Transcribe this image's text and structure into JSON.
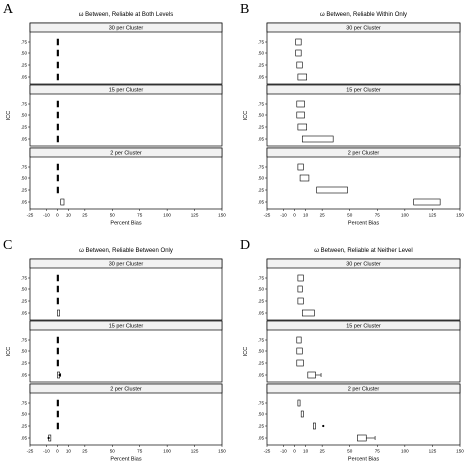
{
  "chart_data": [
    {
      "type": "boxplot",
      "letter": "A",
      "title": "ω Between, Reliable at Both Levels",
      "xlabel": "Percent Bias",
      "ylabel": "ICC",
      "xlim": [
        -25,
        150
      ],
      "xticks": [
        -25,
        -10,
        0,
        10,
        25,
        50,
        75,
        100,
        125,
        150
      ],
      "icc_levels": [
        ".75",
        ".50",
        ".25",
        ".05"
      ],
      "facets": [
        {
          "label": "30 per Cluster",
          "boxes": [
            {
              "icc": ".75",
              "q1": 0,
              "q3": 1,
              "wlo": 0,
              "whi": 1
            },
            {
              "icc": ".50",
              "q1": 0,
              "q3": 1,
              "wlo": 0,
              "whi": 1
            },
            {
              "icc": ".25",
              "q1": 0,
              "q3": 1,
              "wlo": 0,
              "whi": 1
            },
            {
              "icc": ".05",
              "q1": 0,
              "q3": 1,
              "wlo": 0,
              "whi": 1
            }
          ]
        },
        {
          "label": "15 per Cluster",
          "boxes": [
            {
              "icc": ".75",
              "q1": 0,
              "q3": 1,
              "wlo": 0,
              "whi": 1
            },
            {
              "icc": ".50",
              "q1": 0,
              "q3": 1,
              "wlo": 0,
              "whi": 1
            },
            {
              "icc": ".25",
              "q1": 0,
              "q3": 1,
              "wlo": 0,
              "whi": 1
            },
            {
              "icc": ".05",
              "q1": 0,
              "q3": 1,
              "wlo": 0,
              "whi": 1
            }
          ]
        },
        {
          "label": "2 per Cluster",
          "boxes": [
            {
              "icc": ".75",
              "q1": 0,
              "q3": 1,
              "wlo": 0,
              "whi": 1
            },
            {
              "icc": ".50",
              "q1": 0,
              "q3": 1,
              "wlo": 0,
              "whi": 1
            },
            {
              "icc": ".25",
              "q1": 0,
              "q3": 1,
              "wlo": 0,
              "whi": 1
            },
            {
              "icc": ".05",
              "q1": 3,
              "q3": 6,
              "wlo": 3,
              "whi": 6
            }
          ]
        }
      ]
    },
    {
      "type": "boxplot",
      "letter": "B",
      "title": "ω Between, Reliable Within Only",
      "xlabel": "Percent Bias",
      "ylabel": "ICC",
      "xlim": [
        -25,
        150
      ],
      "xticks": [
        -25,
        -10,
        0,
        10,
        25,
        50,
        75,
        100,
        125,
        150
      ],
      "icc_levels": [
        ".75",
        ".50",
        ".25",
        ".05"
      ],
      "facets": [
        {
          "label": "30 per Cluster",
          "boxes": [
            {
              "icc": ".75",
              "q1": 1,
              "q3": 6,
              "wlo": 1,
              "whi": 6
            },
            {
              "icc": ".50",
              "q1": 1,
              "q3": 6,
              "wlo": 1,
              "whi": 6
            },
            {
              "icc": ".25",
              "q1": 2,
              "q3": 7,
              "wlo": 2,
              "whi": 7
            },
            {
              "icc": ".05",
              "q1": 3,
              "q3": 11,
              "wlo": 3,
              "whi": 11
            }
          ]
        },
        {
          "label": "15 per Cluster",
          "boxes": [
            {
              "icc": ".75",
              "q1": 2,
              "q3": 9,
              "wlo": 2,
              "whi": 9
            },
            {
              "icc": ".50",
              "q1": 2,
              "q3": 9,
              "wlo": 2,
              "whi": 9
            },
            {
              "icc": ".25",
              "q1": 3,
              "q3": 11,
              "wlo": 3,
              "whi": 11
            },
            {
              "icc": ".05",
              "q1": 7,
              "q3": 35,
              "wlo": 7,
              "whi": 35
            }
          ]
        },
        {
          "label": "2 per Cluster",
          "boxes": [
            {
              "icc": ".75",
              "q1": 3,
              "q3": 8,
              "wlo": 3,
              "whi": 8
            },
            {
              "icc": ".50",
              "q1": 5,
              "q3": 13,
              "wlo": 5,
              "whi": 13
            },
            {
              "icc": ".25",
              "q1": 20,
              "q3": 48,
              "wlo": 20,
              "whi": 48
            },
            {
              "icc": ".05",
              "q1": 108,
              "q3": 132,
              "wlo": 108,
              "whi": 132
            }
          ]
        }
      ]
    },
    {
      "type": "boxplot",
      "letter": "C",
      "title": "ω Between, Reliable Between Only",
      "xlabel": "Percent Bias",
      "ylabel": "ICC",
      "xlim": [
        -25,
        150
      ],
      "xticks": [
        -25,
        -10,
        0,
        10,
        25,
        50,
        75,
        100,
        125,
        150
      ],
      "icc_levels": [
        ".75",
        ".50",
        ".25",
        ".05"
      ],
      "facets": [
        {
          "label": "30 per Cluster",
          "boxes": [
            {
              "icc": ".75",
              "q1": 0,
              "q3": 1,
              "wlo": 0,
              "whi": 1
            },
            {
              "icc": ".50",
              "q1": 0,
              "q3": 1,
              "wlo": 0,
              "whi": 1
            },
            {
              "icc": ".25",
              "q1": 0,
              "q3": 1,
              "wlo": 0,
              "whi": 1
            },
            {
              "icc": ".05",
              "q1": 0,
              "q3": 2,
              "wlo": 0,
              "whi": 2
            }
          ]
        },
        {
          "label": "15 per Cluster",
          "boxes": [
            {
              "icc": ".75",
              "q1": 0,
              "q3": 1,
              "wlo": 0,
              "whi": 1
            },
            {
              "icc": ".50",
              "q1": 0,
              "q3": 1,
              "wlo": 0,
              "whi": 1
            },
            {
              "icc": ".25",
              "q1": 0,
              "q3": 1,
              "wlo": 0,
              "whi": 1
            },
            {
              "icc": ".05",
              "q1": 0,
              "q3": 2,
              "wlo": 0,
              "whi": 3,
              "outliers": [
                2
              ]
            }
          ]
        },
        {
          "label": "2 per Cluster",
          "boxes": [
            {
              "icc": ".75",
              "q1": 0,
              "q3": 1,
              "wlo": 0,
              "whi": 1
            },
            {
              "icc": ".50",
              "q1": 0,
              "q3": 1,
              "wlo": 0,
              "whi": 1
            },
            {
              "icc": ".25",
              "q1": 0,
              "q3": 1,
              "wlo": 0,
              "whi": 1
            },
            {
              "icc": ".05",
              "q1": -8,
              "q3": -6,
              "wlo": -9,
              "whi": -6,
              "outliers": [
                -8
              ]
            }
          ]
        }
      ]
    },
    {
      "type": "boxplot",
      "letter": "D",
      "title": "ω Between, Reliable at Neither Level",
      "xlabel": "Percent Bias",
      "ylabel": "ICC",
      "xlim": [
        -25,
        150
      ],
      "xticks": [
        -25,
        -10,
        0,
        10,
        25,
        50,
        75,
        100,
        125,
        150
      ],
      "icc_levels": [
        ".75",
        ".50",
        ".25",
        ".05"
      ],
      "facets": [
        {
          "label": "30 per Cluster",
          "boxes": [
            {
              "icc": ".75",
              "q1": 3,
              "q3": 8,
              "wlo": 3,
              "whi": 8
            },
            {
              "icc": ".50",
              "q1": 3,
              "q3": 7,
              "wlo": 3,
              "whi": 7
            },
            {
              "icc": ".25",
              "q1": 3,
              "q3": 8,
              "wlo": 3,
              "whi": 8
            },
            {
              "icc": ".05",
              "q1": 7,
              "q3": 18,
              "wlo": 7,
              "whi": 18
            }
          ]
        },
        {
          "label": "15 per Cluster",
          "boxes": [
            {
              "icc": ".75",
              "q1": 2,
              "q3": 6,
              "wlo": 2,
              "whi": 6
            },
            {
              "icc": ".50",
              "q1": 2,
              "q3": 7,
              "wlo": 2,
              "whi": 7
            },
            {
              "icc": ".25",
              "q1": 2,
              "q3": 8,
              "wlo": 2,
              "whi": 8
            },
            {
              "icc": ".05",
              "q1": 12,
              "q3": 19,
              "wlo": 12,
              "whi": 24
            }
          ]
        },
        {
          "label": "2 per Cluster",
          "boxes": [
            {
              "icc": ".75",
              "q1": 3,
              "q3": 5,
              "wlo": 3,
              "whi": 5
            },
            {
              "icc": ".50",
              "q1": 6,
              "q3": 8,
              "wlo": 6,
              "whi": 8
            },
            {
              "icc": ".25",
              "q1": 17,
              "q3": 19,
              "wlo": 17,
              "whi": 19,
              "outliers": [
                26
              ]
            },
            {
              "icc": ".05",
              "q1": 57,
              "q3": 65,
              "wlo": 57,
              "whi": 73
            }
          ]
        }
      ]
    }
  ]
}
